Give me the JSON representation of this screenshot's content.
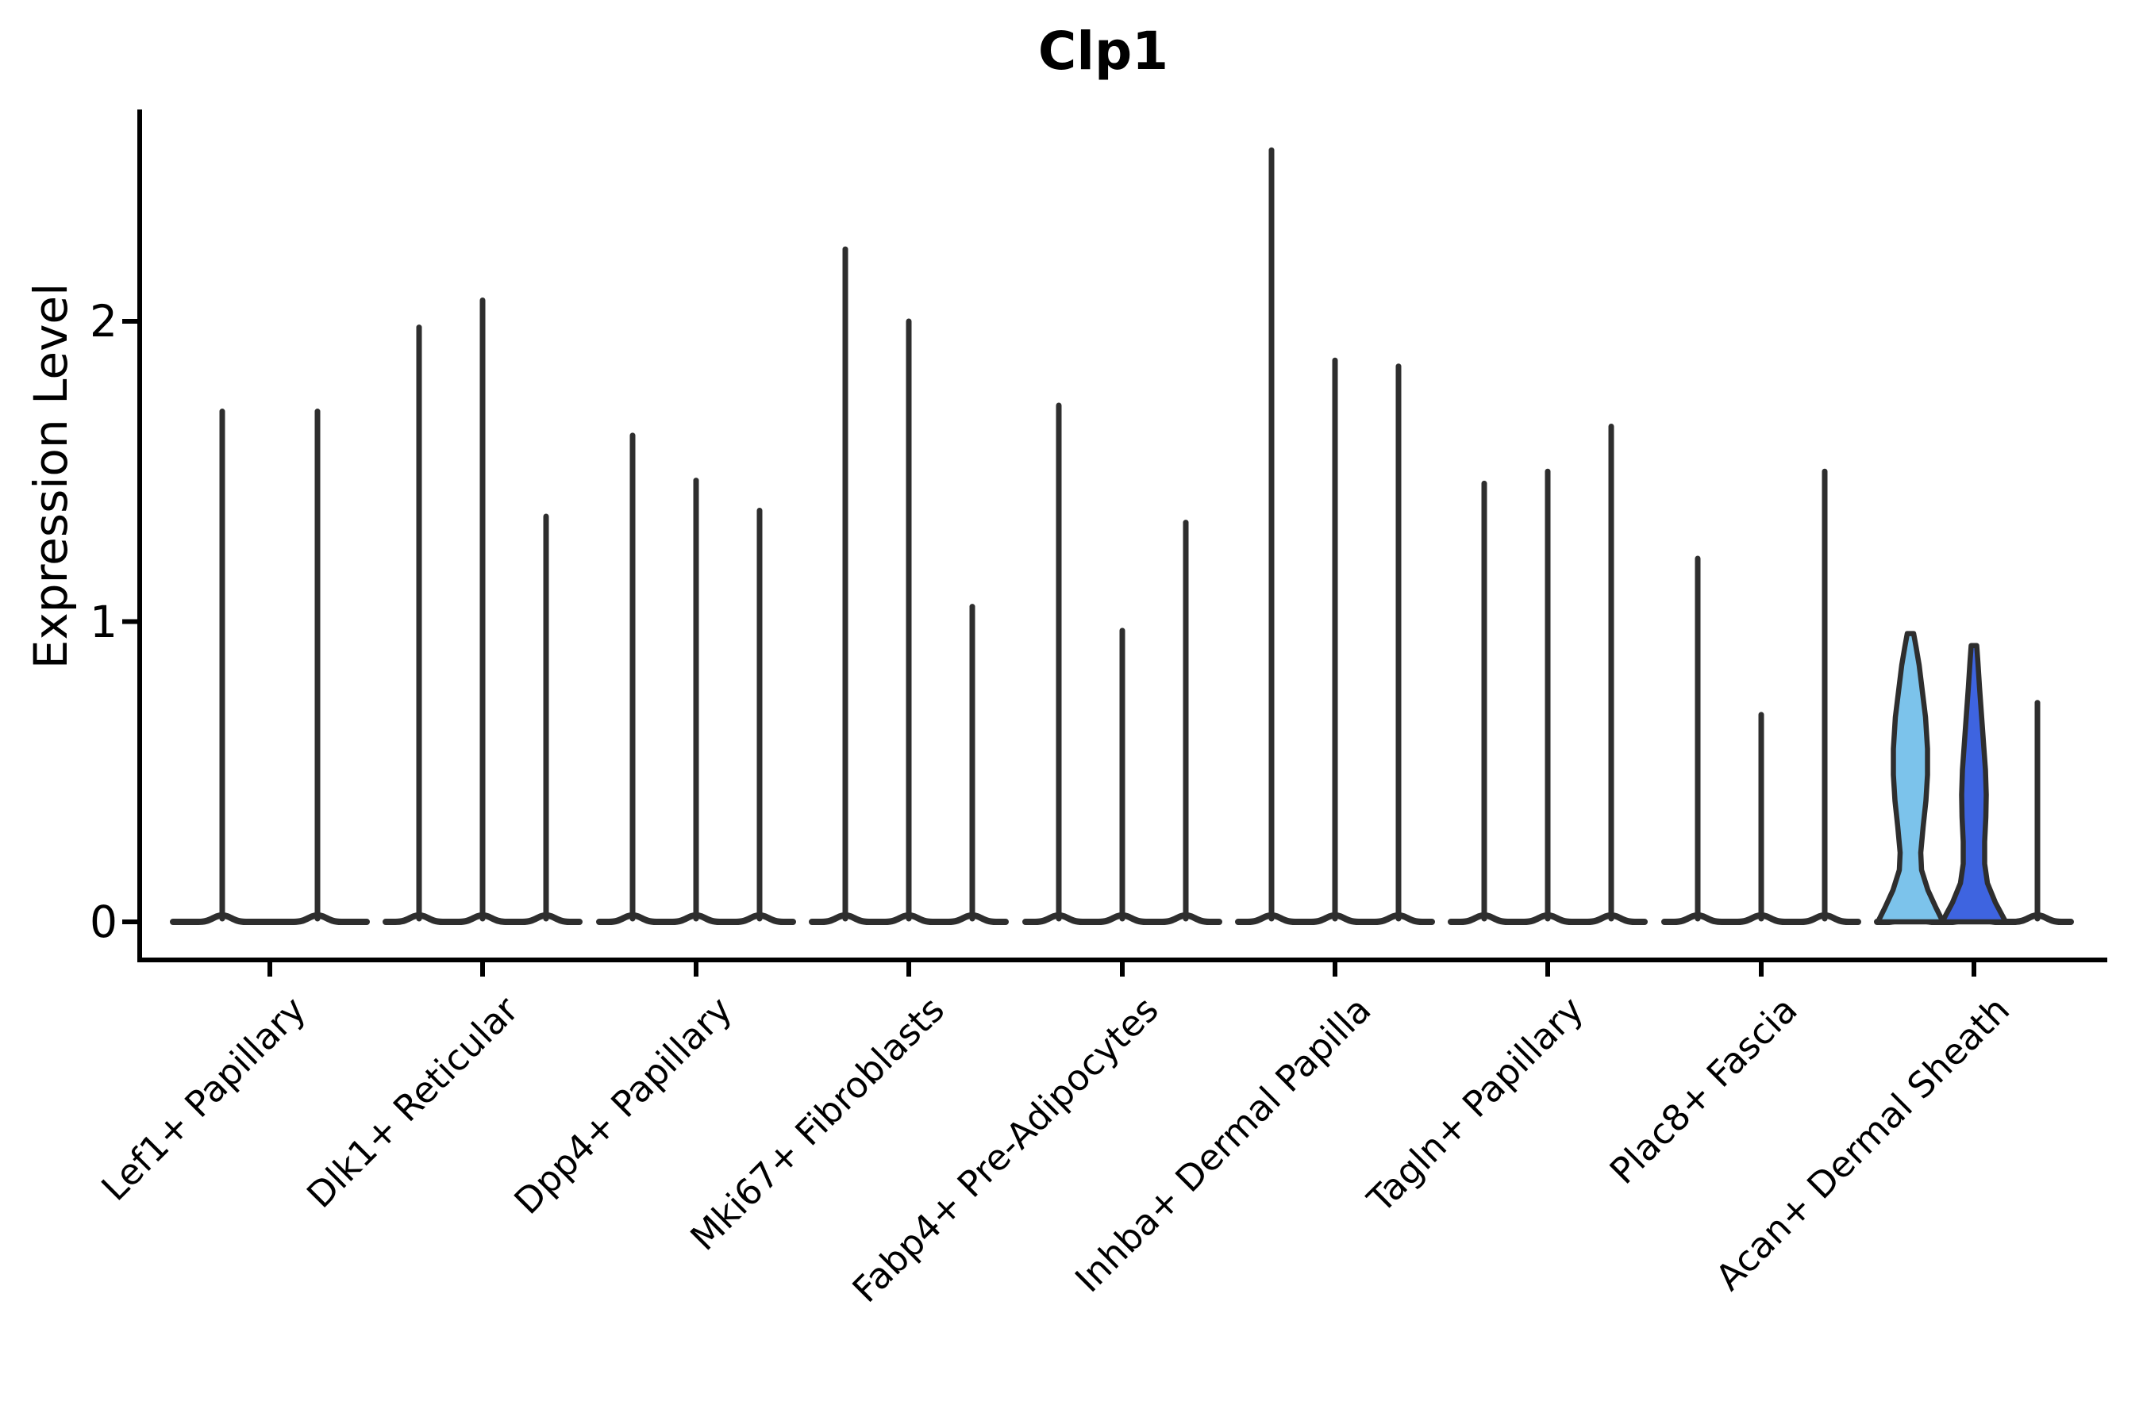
{
  "title": "Clp1",
  "axes": {
    "ylabel": "Expression Level",
    "yticks": [
      "0",
      "1",
      "2"
    ]
  },
  "chart_data": {
    "type": "violin",
    "title": "Clp1",
    "xlabel": "",
    "ylabel": "Expression Level",
    "ylim": [
      -0.13,
      2.71
    ],
    "yticks": [
      0,
      1,
      2
    ],
    "grid": false,
    "legend": "none",
    "categories": [
      "Lef1+ Papillary",
      "Dlk1+ Reticular",
      "Dpp4+ Papillary",
      "Mki67+ Fibroblasts",
      "Fabp4+ Pre-Adipocytes",
      "Inhba+ Dermal Papilla",
      "Tagln+ Papillary",
      "Plac8+ Fascia",
      "Acan+ Dermal Sheath"
    ],
    "description": "Violin plot of Clp1 expression per cell type; each category contains 2-3 sample violins whose mass is concentrated at 0 with a thin tail reaching the listed maximum expression value. Only the Acan+ Dermal Sheath violins have visible width (highlighted fills).",
    "groups": [
      {
        "category": "Lef1+ Papillary",
        "violins": [
          {
            "max": 1.7
          },
          {
            "max": 1.7
          }
        ]
      },
      {
        "category": "Dlk1+ Reticular",
        "violins": [
          {
            "max": 1.98
          },
          {
            "max": 2.07
          },
          {
            "max": 1.35
          }
        ]
      },
      {
        "category": "Dpp4+ Papillary",
        "violins": [
          {
            "max": 1.62
          },
          {
            "max": 1.47
          },
          {
            "max": 1.37
          }
        ]
      },
      {
        "category": "Mki67+ Fibroblasts",
        "violins": [
          {
            "max": 2.24
          },
          {
            "max": 2.0
          },
          {
            "max": 1.05
          }
        ]
      },
      {
        "category": "Fabp4+ Pre-Adipocytes",
        "violins": [
          {
            "max": 1.72
          },
          {
            "max": 0.97
          },
          {
            "max": 1.33
          }
        ]
      },
      {
        "category": "Inhba+ Dermal Papilla",
        "violins": [
          {
            "max": 2.57
          },
          {
            "max": 1.87
          },
          {
            "max": 1.85
          }
        ]
      },
      {
        "category": "Tagln+ Papillary",
        "violins": [
          {
            "max": 1.46
          },
          {
            "max": 1.5
          },
          {
            "max": 1.65
          }
        ]
      },
      {
        "category": "Plac8+ Fascia",
        "violins": [
          {
            "max": 1.21
          },
          {
            "max": 0.69
          },
          {
            "max": 1.5
          }
        ]
      },
      {
        "category": "Acan+ Dermal Sheath",
        "violins": [
          {
            "max": 0.96,
            "wide": true,
            "fill": "#7CC3EB"
          },
          {
            "max": 0.92,
            "wide": true,
            "fill": "#3E64E0"
          },
          {
            "max": 0.73
          }
        ]
      }
    ],
    "colors": {
      "outline": "#2E2E2E",
      "spine": "#000000",
      "highlight_light_blue": "#7CC3EB",
      "highlight_royal_blue": "#3E64E0",
      "text": "#000000"
    }
  }
}
